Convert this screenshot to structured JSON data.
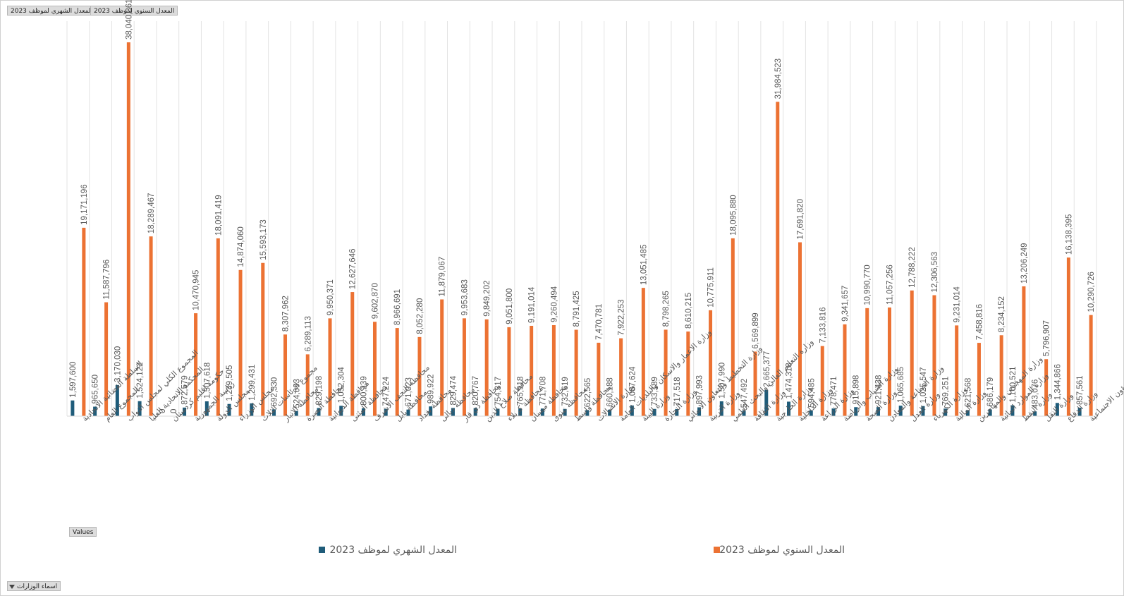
{
  "field_buttons": {
    "monthly": "المعدل الشهري لموظف 2023",
    "annual": "المعدل السنوي لموظف 2023",
    "values": "Values",
    "axis_field": "اسماء الوزارات"
  },
  "colors": {
    "monthly": "#1f5c7a",
    "annual": "#ec7233",
    "grid": "#e3e3e3"
  },
  "chart_data": {
    "type": "bar",
    "title": "",
    "xlabel": "",
    "ylabel": "",
    "ylim": [
      0,
      40000000
    ],
    "grid": "vertical-category-lines",
    "legend_position": "bottom",
    "categories": [
      "السلطة القضائية الاتحادية",
      "المجموع العام",
      "المجموع الكلي لمجلس النواب",
      "المحكمة الاتحادية العليا",
      "حكومة اقليم كردستان",
      "رئاسة الجمهورية",
      "مجلس الدولة",
      "مجلس الوزراء",
      "مجموع الرئاسات الثلاث",
      "محافظة الانبار",
      "محافظة البصرة",
      "محافظة الديوانية",
      "محافظة المثنى",
      "محافظة النجف الاشرف",
      "محافظة بابل",
      "محافظة بغداد",
      "محافظة ديالى",
      "محافظة ذي قار",
      "محافظة صلاح الدين",
      "محافظة كربلاء",
      "محافظة ميسان",
      "محافظة نينوى",
      "محافظة واسط",
      "وزارة الاتصالات",
      "وزارة الاعمار والاسكان والبلديات العامة",
      "وزارة البيئة",
      "وزارة التجارة",
      "وزارة التخطيط والتعاون الانمائي",
      "وزارة التربية",
      "وزارة التعليم العالي والبحث العلمي",
      "وزارة الثقافة",
      "وزارة الخارجية",
      "وزارة الداخلية",
      "وزارة الزراعة",
      "وزارة الشباب والرياضة",
      "وزارة الصحة",
      "وزارة الصناعة والمعادن",
      "وزارة العدل",
      "وزارة الكهرباء",
      "وزارة المالية",
      "وزارة المهجرين والمهاجرين",
      "وزارة الموارد المائية",
      "وزارة النفط",
      "وزارة النقل",
      "وزارة الدفاع",
      "وزارة العمل والشؤون الاجتماعية"
    ],
    "series": [
      {
        "name": "المعدل الشهري لموظف 2023",
        "values": [
          1597600,
          965650,
          3170030,
          1524122,
          0,
          872579,
          1507618,
          1239505,
          1299431,
          692330,
          524093,
          829198,
          1052304,
          800239,
          747224,
          671023,
          989922,
          829474,
          820767,
          754317,
          765918,
          771708,
          732619,
          622565,
          660188,
          1087624,
          733189,
          717518,
          897993,
          1507990,
          547492,
          2665377,
          1474318,
          594485,
          778471,
          915898,
          921438,
          1065685,
          1025547,
          769251,
          621568,
          686179,
          1100521,
          483076,
          1344866,
          857561
        ],
        "labels": [
          "1,597,600",
          "965,650",
          "3,170,030",
          "1,524,122",
          "0",
          "872,579",
          "1,507,618",
          "1,239,505",
          "1,299,431",
          "692,330",
          "524,093",
          "829,198",
          "1,052,304",
          "800,239",
          "747,224",
          "671,023",
          "989,922",
          "829,474",
          "820,767",
          "754,317",
          "765,918",
          "771,708",
          "732,619",
          "622,565",
          "660,188",
          "1,087,624",
          "733,189",
          "717,518",
          "897,993",
          "1,507,990",
          "547,492",
          "2,665,377",
          "1,474,318",
          "594,485",
          "778,471",
          "915,898",
          "921,438",
          "1,065,685",
          "1,025,547",
          "769,251",
          "621,568",
          "686,179",
          "1,100,521",
          "483,076",
          "1,344,866",
          "857,561"
        ]
      },
      {
        "name": "المعدل السنوي لموظف 2023",
        "values": [
          19171196,
          11587796,
          38040361,
          18289467,
          0,
          10470945,
          18091419,
          14874060,
          15593173,
          8307962,
          6289113,
          9950371,
          12627646,
          9602870,
          8966691,
          8052280,
          11879067,
          9953683,
          9849202,
          9051800,
          9191014,
          9260494,
          8791425,
          7470781,
          7922253,
          13051485,
          8798265,
          8610215,
          10775911,
          18095880,
          6569899,
          31984523,
          17691820,
          7133816,
          9341657,
          10990770,
          11057256,
          12788222,
          12306563,
          9231014,
          7458816,
          8234152,
          13206249,
          5796907,
          16138395,
          10290726
        ],
        "labels": [
          "19,171,196",
          "11,587,796",
          "38,040,361",
          "18,289,467",
          "0",
          "10,470,945",
          "18,091,419",
          "14,874,060",
          "15,593,173",
          "8,307,962",
          "6,289,113",
          "9,950,371",
          "12,627,646",
          "9,602,870",
          "8,966,691",
          "8,052,280",
          "11,879,067",
          "9,953,683",
          "9,849,202",
          "9,051,800",
          "9,191,014",
          "9,260,494",
          "8,791,425",
          "7,470,781",
          "7,922,253",
          "13,051,485",
          "8,798,265",
          "8,610,215",
          "10,775,911",
          "18,095,880",
          "6,569,899",
          "31,984,523",
          "17,691,820",
          "7,133,816",
          "9,341,657",
          "10,990,770",
          "11,057,256",
          "12,788,222",
          "12,306,563",
          "9,231,014",
          "7,458,816",
          "8,234,152",
          "13,206,249",
          "5,796,907",
          "16,138,395",
          "10,290,726"
        ]
      }
    ]
  }
}
